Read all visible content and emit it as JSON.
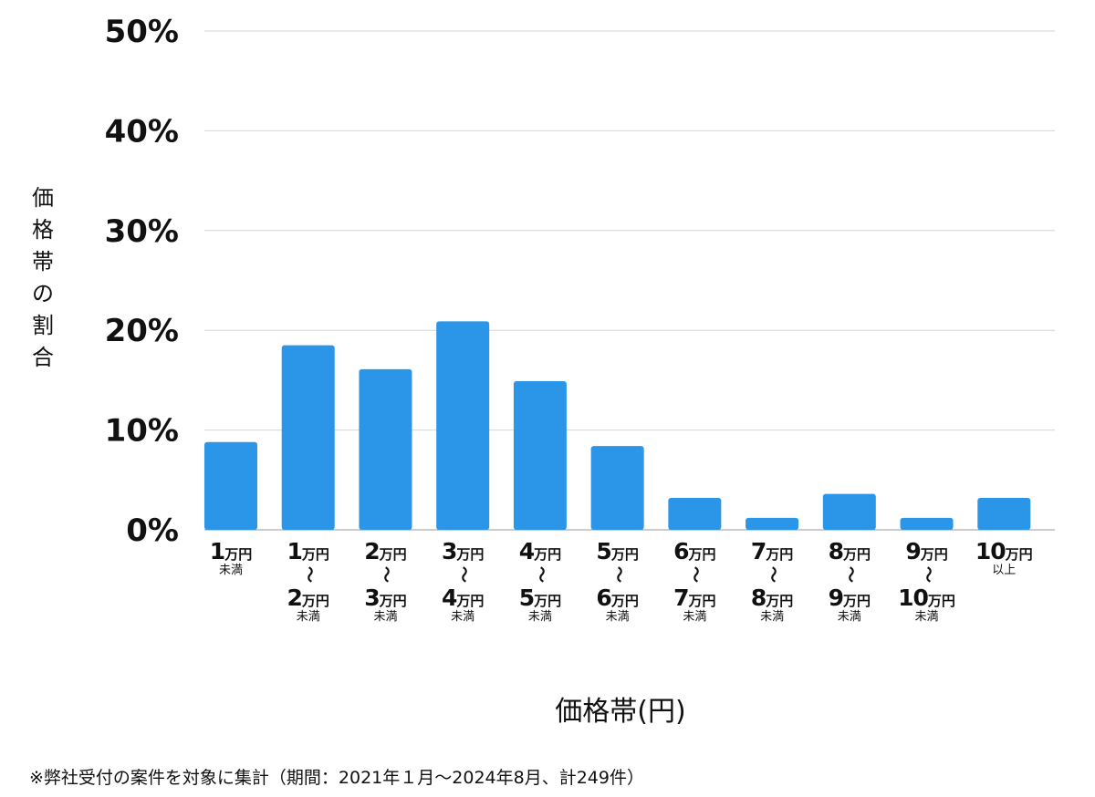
{
  "chart_data": {
    "type": "bar",
    "title": "",
    "xlabel": "価格帯(円)",
    "ylabel": "価格帯の割合",
    "ylim": [
      0,
      50
    ],
    "yticks": [
      "0%",
      "10%",
      "20%",
      "30%",
      "40%",
      "50%"
    ],
    "grid": true,
    "bar_color": "#2b96e8",
    "categories": [
      {
        "from": "1",
        "unit": "万円",
        "note": "未満"
      },
      {
        "from": "1",
        "to": "2",
        "unit": "万円",
        "note": "未満"
      },
      {
        "from": "2",
        "to": "3",
        "unit": "万円",
        "note": "未満"
      },
      {
        "from": "3",
        "to": "4",
        "unit": "万円",
        "note": "未満"
      },
      {
        "from": "4",
        "to": "5",
        "unit": "万円",
        "note": "未満"
      },
      {
        "from": "5",
        "to": "6",
        "unit": "万円",
        "note": "未満"
      },
      {
        "from": "6",
        "to": "7",
        "unit": "万円",
        "note": "未満"
      },
      {
        "from": "7",
        "to": "8",
        "unit": "万円",
        "note": "未満"
      },
      {
        "from": "8",
        "to": "9",
        "unit": "万円",
        "note": "未満"
      },
      {
        "from": "9",
        "to": "10",
        "unit": "万円",
        "note": "未満"
      },
      {
        "from": "10",
        "unit": "万円",
        "note": "以上"
      }
    ],
    "range_symbol": "〜",
    "values": [
      8.8,
      18.5,
      16.1,
      20.9,
      14.9,
      8.4,
      3.2,
      1.2,
      3.6,
      1.2,
      3.2
    ]
  },
  "footnote": "※弊社受付の案件を対象に集計（期間：2021年１月〜2024年8月、計249件）"
}
